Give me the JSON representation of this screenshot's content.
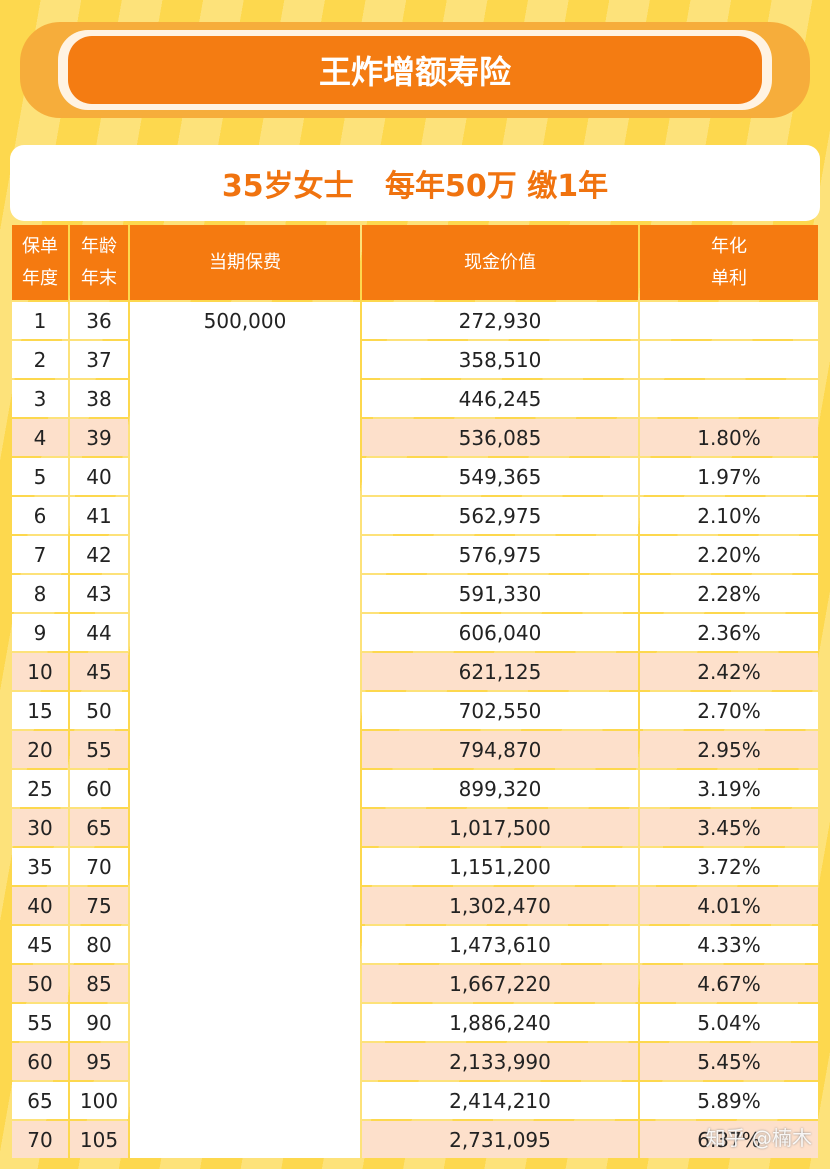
{
  "header": {
    "title": "王炸增额寿险",
    "subtitle": "35岁女士   每年50万 缴1年"
  },
  "table": {
    "columns": [
      "保单\n年度",
      "年龄\n年末",
      "当期保费",
      "现金价值",
      "年化\n单利"
    ],
    "rows": [
      {
        "year": "1",
        "age": "36",
        "premium": "500,000",
        "cash_value": "272,930"
      },
      {
        "year": "2",
        "age": "37",
        "cash_value": "358,510"
      },
      {
        "year": "3",
        "age": "38",
        "cash_value": "446,245"
      },
      {
        "year": "4",
        "age": "39",
        "cash_value": "536,085",
        "rate": "1.80%"
      },
      {
        "year": "5",
        "age": "40",
        "cash_value": "549,365",
        "rate": "1.97%"
      },
      {
        "year": "6",
        "age": "41",
        "cash_value": "562,975",
        "rate": "2.10%"
      },
      {
        "year": "7",
        "age": "42",
        "cash_value": "576,975",
        "rate": "2.20%"
      },
      {
        "year": "8",
        "age": "43",
        "cash_value": "591,330",
        "rate": "2.28%"
      },
      {
        "year": "9",
        "age": "44",
        "cash_value": "606,040",
        "rate": "2.36%"
      },
      {
        "year": "10",
        "age": "45",
        "cash_value": "621,125",
        "rate": "2.42%"
      },
      {
        "year": "15",
        "age": "50",
        "cash_value": "702,550",
        "rate": "2.70%"
      },
      {
        "year": "20",
        "age": "55",
        "cash_value": "794,870",
        "rate": "2.95%"
      },
      {
        "year": "25",
        "age": "60",
        "cash_value": "899,320",
        "rate": "3.19%"
      },
      {
        "year": "30",
        "age": "65",
        "cash_value": "1,017,500",
        "rate": "3.45%"
      },
      {
        "year": "35",
        "age": "70",
        "cash_value": "1,151,200",
        "rate": "3.72%"
      },
      {
        "year": "40",
        "age": "75",
        "cash_value": "1,302,470",
        "rate": "4.01%"
      },
      {
        "year": "45",
        "age": "80",
        "cash_value": "1,473,610",
        "rate": "4.33%"
      },
      {
        "year": "50",
        "age": "85",
        "cash_value": "1,667,220",
        "rate": "4.67%"
      },
      {
        "year": "55",
        "age": "90",
        "cash_value": "1,886,240",
        "rate": "5.04%"
      },
      {
        "year": "60",
        "age": "95",
        "cash_value": "2,133,990",
        "rate": "5.45%"
      },
      {
        "year": "65",
        "age": "100",
        "cash_value": "2,414,210",
        "rate": "5.89%"
      },
      {
        "year": "70",
        "age": "105",
        "cash_value": "2,731,095",
        "rate": "6.37%"
      }
    ]
  },
  "watermark": "知乎 @楠木"
}
